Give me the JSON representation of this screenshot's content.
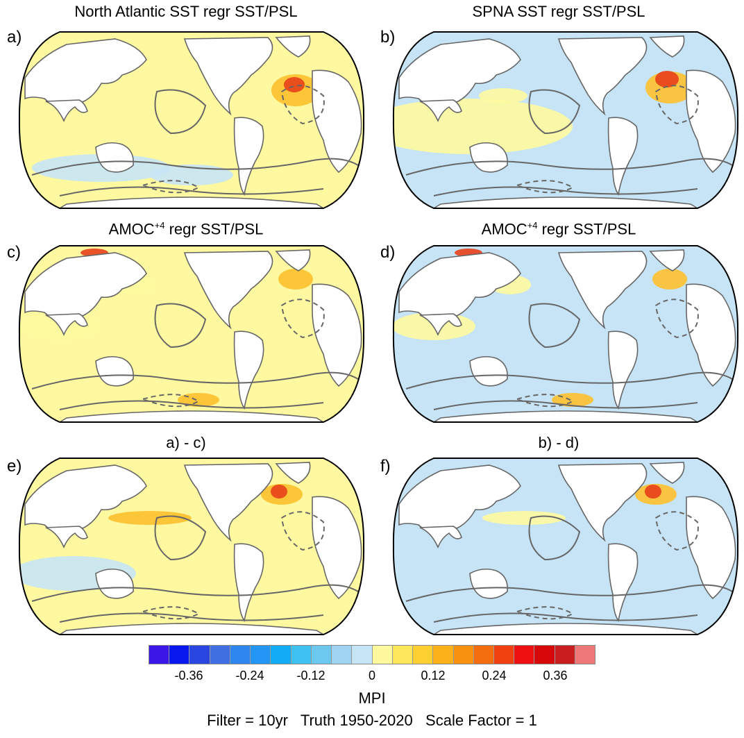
{
  "panels": [
    {
      "letter": "a)",
      "title": "North Atlantic SST regr SST/PSL",
      "sup": "",
      "title_rest": ""
    },
    {
      "letter": "b)",
      "title": "SPNA SST regr SST/PSL",
      "sup": "",
      "title_rest": ""
    },
    {
      "letter": "c)",
      "title": "AMOC",
      "sup": "+4",
      "title_rest": " regr SST/PSL"
    },
    {
      "letter": "d)",
      "title": "AMOC",
      "sup": "+4",
      "title_rest": " regr SST/PSL"
    },
    {
      "letter": "e)",
      "title": "a) - c)",
      "sup": "",
      "title_rest": ""
    },
    {
      "letter": "f)",
      "title": "b) - d)",
      "sup": "",
      "title_rest": ""
    }
  ],
  "colorbar": {
    "colors": [
      "#3a17e6",
      "#0a18f0",
      "#2a46e0",
      "#3f6fe0",
      "#2f86ee",
      "#2396f5",
      "#12acf6",
      "#3ec0f0",
      "#6cc8ee",
      "#9ed4f1",
      "#c5e5f5",
      "#fef99c",
      "#fde65a",
      "#fdcf30",
      "#fcb11a",
      "#f89010",
      "#f46e10",
      "#f04010",
      "#ee1010",
      "#d70808",
      "#c81e1e",
      "#ee7878"
    ],
    "tick_labels": [
      "-0.36",
      "-0.24",
      "-0.12",
      "0",
      "0.12",
      "0.24",
      "0.36"
    ],
    "units": "MPI"
  },
  "footer": {
    "filter": "Filter = 10yr",
    "truth": "Truth 1950-2020",
    "scale": "Scale Factor = 1"
  },
  "colors": {
    "land": "#ffffff",
    "ocean_positive": "#fef9a0",
    "ocean_negative": "#c6e4f5",
    "warm": "#fdc02e",
    "hot": "#e8401a",
    "contour": "#666666"
  }
}
